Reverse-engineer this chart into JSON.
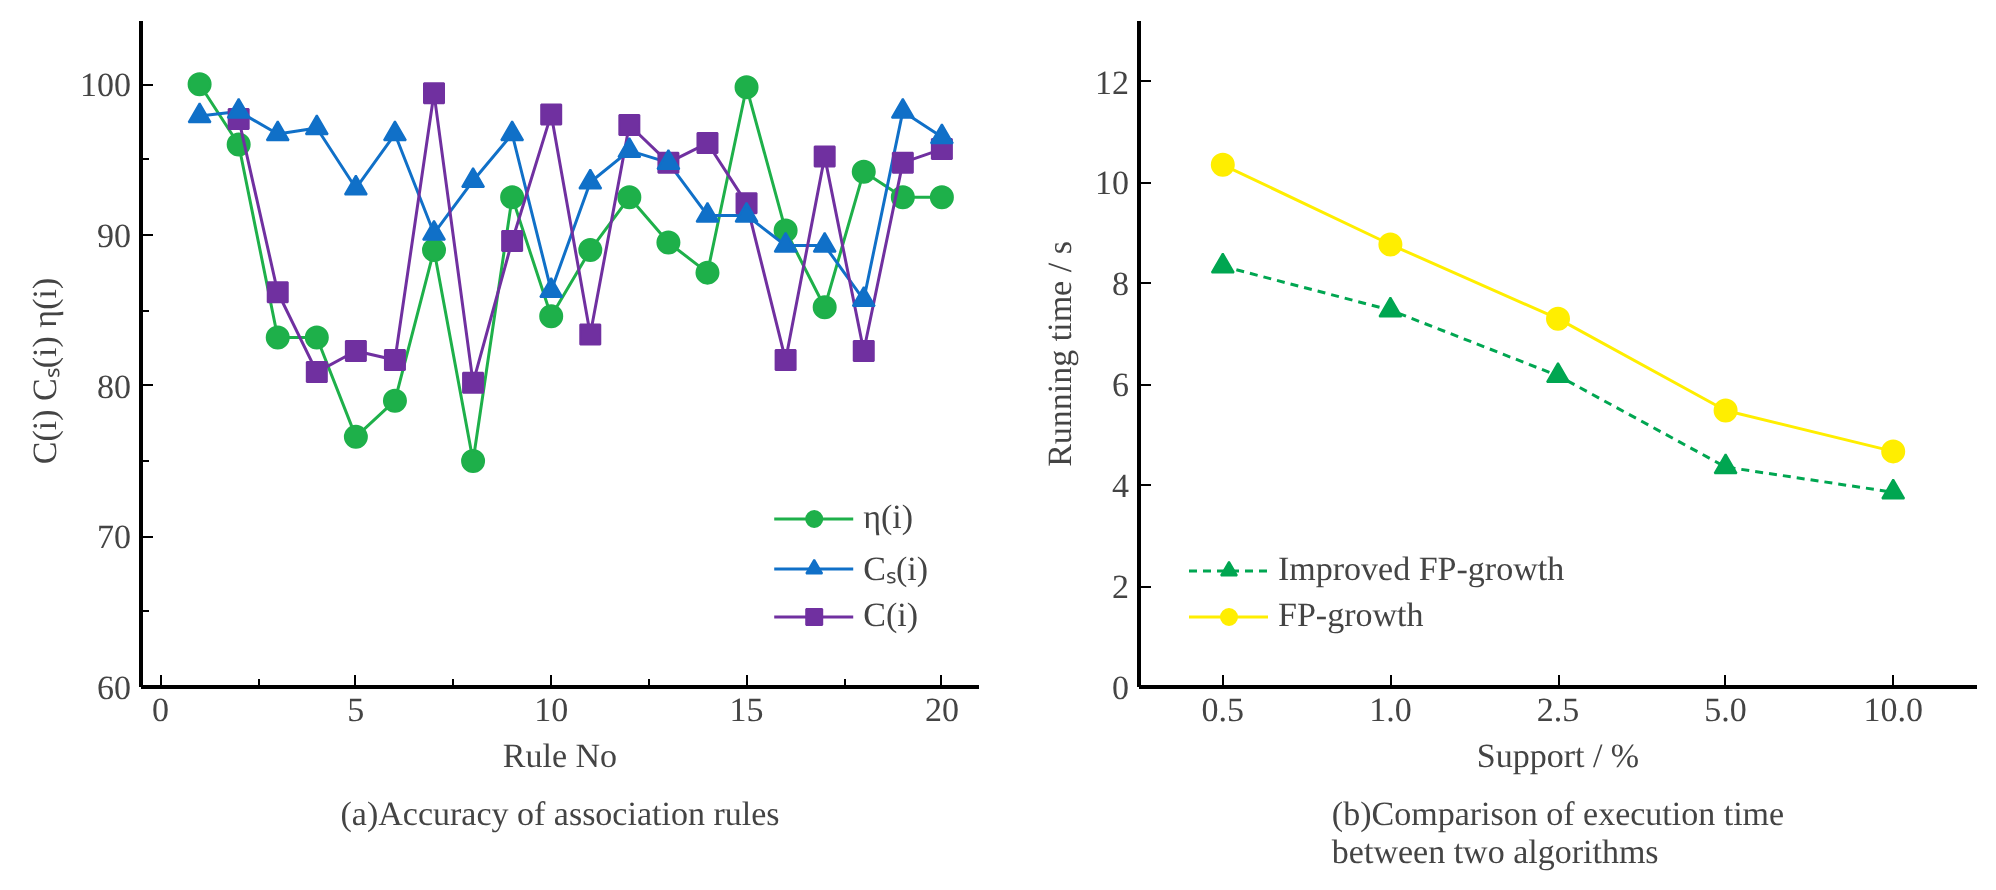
{
  "chart_data": [
    {
      "type": "line",
      "xlabel": "Rule No",
      "ylabel": "C(i)   Cₛ(i)   η(i)",
      "x": [
        1,
        2,
        3,
        4,
        5,
        6,
        7,
        8,
        9,
        10,
        11,
        12,
        13,
        14,
        15,
        16,
        17,
        18,
        19,
        20
      ],
      "series": [
        {
          "name": "η(i)",
          "color": "#1eb04a",
          "marker": "circle",
          "values": [
            100,
            96.0,
            83.2,
            83.2,
            76.6,
            79.0,
            89.0,
            75.0,
            92.5,
            84.6,
            89.0,
            92.5,
            89.5,
            87.5,
            99.8,
            90.3,
            85.2,
            94.2,
            92.5,
            92.5
          ]
        },
        {
          "name": "Cₛ(i)",
          "color": "#1070c8",
          "marker": "triangle",
          "values": [
            97.9,
            98.2,
            96.7,
            97.1,
            93.1,
            96.7,
            90.1,
            93.6,
            96.7,
            86.3,
            93.5,
            95.6,
            94.8,
            91.3,
            91.3,
            89.3,
            89.3,
            85.7,
            98.2,
            96.5
          ]
        },
        {
          "name": "C(i)",
          "color": "#7030a0",
          "marker": "square",
          "values": [
            null,
            97.7,
            86.2,
            80.9,
            82.3,
            81.7,
            99.4,
            80.2,
            89.6,
            98.0,
            83.4,
            97.3,
            94.8,
            96.1,
            92.1,
            81.7,
            95.2,
            82.3,
            94.8,
            95.7
          ]
        }
      ],
      "xlim": [
        -0.5,
        20.95
      ],
      "ylim": [
        60,
        104.2
      ],
      "xticks": [
        0,
        {
          "value": 2.5,
          "label": null
        },
        5,
        {
          "value": 7.5,
          "label": null
        },
        10,
        {
          "value": 12.5,
          "label": null
        },
        15,
        {
          "value": 17.5,
          "label": null
        },
        20
      ],
      "yticks": [
        60,
        {
          "value": 65,
          "label": null
        },
        70,
        {
          "value": 75,
          "label": null
        },
        80,
        {
          "value": 85,
          "label": null
        },
        90,
        {
          "value": 95,
          "label": null
        },
        100
      ],
      "grid": false,
      "legend": "bottom right",
      "annotations": [
        "(a)Accuracy of association rules"
      ]
    },
    {
      "type": "line",
      "xlabel": "Support / %",
      "ylabel": "Running time / s",
      "categories": [
        "0.5",
        "1.0",
        "2.5",
        "5.0",
        "10.0"
      ],
      "series": [
        {
          "name": "Improved FP-growth",
          "color": "#00a651",
          "marker": "triangle",
          "line_style": "dashed",
          "values": [
            8.34,
            7.47,
            6.17,
            4.36,
            3.86
          ]
        },
        {
          "name": "FP-growth",
          "color": "#ffee00",
          "marker": "circle",
          "line_style": "solid",
          "values": [
            10.35,
            8.77,
            7.3,
            5.48,
            4.67
          ]
        }
      ],
      "ylim": [
        0,
        13.2
      ],
      "yticks": [
        0,
        2,
        4,
        6,
        8,
        10,
        12
      ],
      "grid": false,
      "legend": "bottom left",
      "annotations": [
        "(b)Comparison of execution time between two algorithms"
      ]
    }
  ]
}
